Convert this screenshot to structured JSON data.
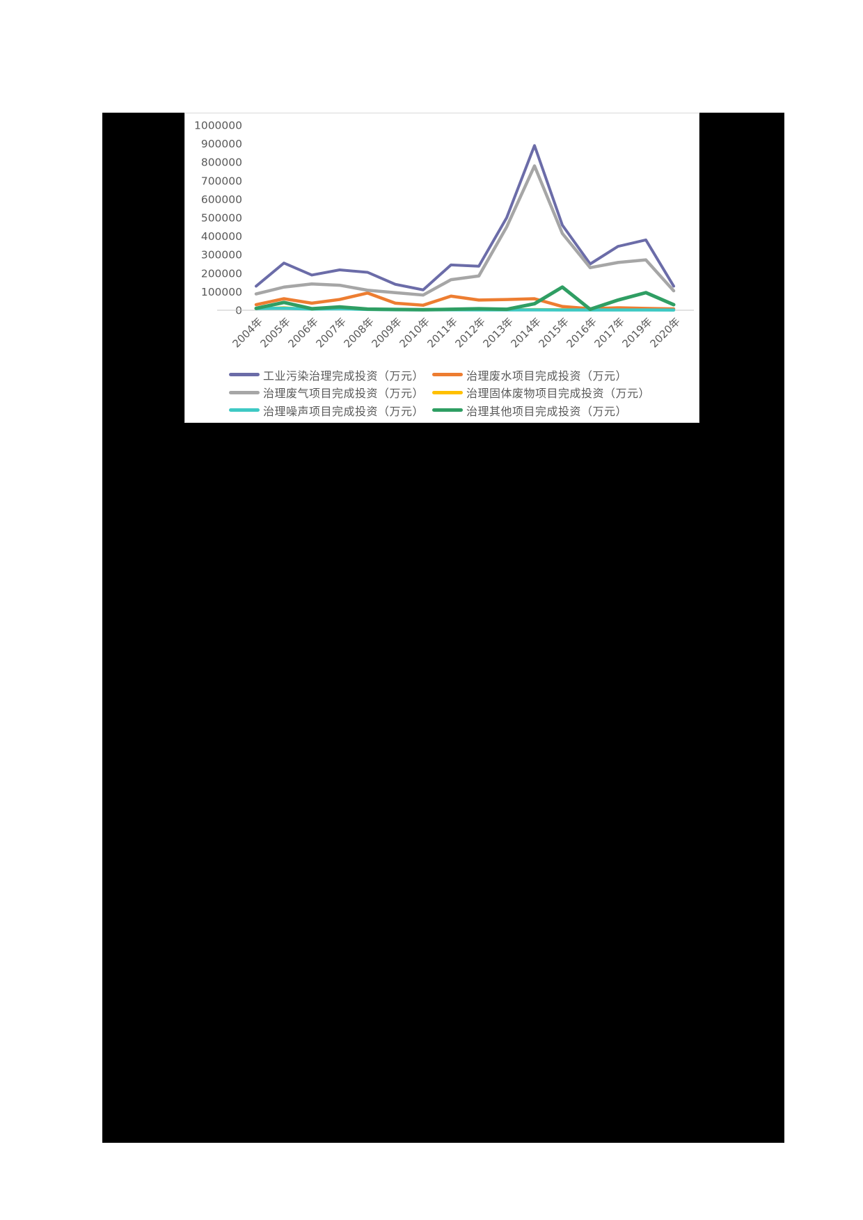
{
  "chart_data": {
    "type": "line",
    "title": "",
    "categories": [
      "2004年",
      "2005年",
      "2006年",
      "2007年",
      "2008年",
      "2009年",
      "2010年",
      "2011年",
      "2012年",
      "2013年",
      "2014年",
      "2015年",
      "2016年",
      "2017年",
      "2019年",
      "2020年"
    ],
    "series": [
      {
        "name": "工业污染治理完成投资（万元）",
        "color": "#6B6CA8",
        "values": [
          130000,
          255000,
          190000,
          218000,
          205000,
          140000,
          110000,
          245000,
          238000,
          500000,
          890000,
          460000,
          250000,
          345000,
          380000,
          130000
        ]
      },
      {
        "name": "治理废水项目完成投资（万元）",
        "color": "#ED7D31",
        "values": [
          30000,
          62000,
          38000,
          58000,
          93000,
          38000,
          27000,
          76000,
          55000,
          58000,
          62000,
          20000,
          8000,
          13000,
          10000,
          7000
        ]
      },
      {
        "name": "治理废气项目完成投资（万元）",
        "color": "#A6A6A6",
        "values": [
          88000,
          125000,
          142000,
          135000,
          108000,
          95000,
          82000,
          165000,
          185000,
          450000,
          780000,
          415000,
          230000,
          258000,
          272000,
          105000
        ]
      },
      {
        "name": "治理固体废物项目完成投资（万元）",
        "color": "#FFC000",
        "values": [
          8000,
          15000,
          4000,
          9000,
          3000,
          2000,
          2000,
          6000,
          5000,
          4000,
          5000,
          4000,
          2000,
          3000,
          2000,
          2000
        ]
      },
      {
        "name": "治理噪声项目完成投资（万元）",
        "color": "#3EC9C4",
        "values": [
          9000,
          11000,
          6000,
          8000,
          4000,
          2500,
          2000,
          2500,
          2000,
          2000,
          2000,
          1500,
          1500,
          1500,
          1500,
          1000
        ]
      },
      {
        "name": "治理其他项目完成投资（万元）",
        "color": "#2F9E63",
        "values": [
          10000,
          42000,
          8000,
          18000,
          6000,
          4000,
          3000,
          5000,
          8000,
          5000,
          35000,
          125000,
          5000,
          55000,
          95000,
          30000
        ]
      }
    ],
    "ylim": [
      0,
      1000000
    ],
    "ytick_step": 100000,
    "yticks": [
      "1000000",
      "900000",
      "800000",
      "700000",
      "600000",
      "500000",
      "400000",
      "300000",
      "200000",
      "100000",
      "0"
    ],
    "xlabel": "",
    "ylabel": "",
    "grid": "off",
    "legend_position": "bottom",
    "colors": {
      "axis_line": "#C6C6C6",
      "tick_label": "#595959",
      "legend_text": "#595959",
      "panel_border": "#D9D9D9",
      "banner_background": "#000000",
      "page_background": "#FFFFFF"
    }
  }
}
